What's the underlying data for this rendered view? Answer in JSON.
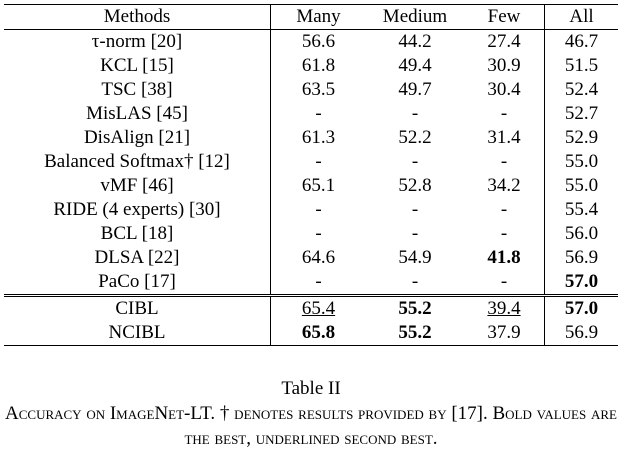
{
  "table": {
    "headers": [
      "Methods",
      "Many",
      "Medium",
      "Few",
      "All"
    ],
    "rows": [
      {
        "method": "τ-norm [20]",
        "cells": [
          "56.6",
          "44.2",
          "27.4",
          "46.7"
        ],
        "bold": [],
        "underline": []
      },
      {
        "method": "KCL [15]",
        "cells": [
          "61.8",
          "49.4",
          "30.9",
          "51.5"
        ],
        "bold": [],
        "underline": []
      },
      {
        "method": "TSC [38]",
        "cells": [
          "63.5",
          "49.7",
          "30.4",
          "52.4"
        ],
        "bold": [],
        "underline": []
      },
      {
        "method": "MisLAS [45]",
        "cells": [
          "-",
          "-",
          "-",
          "52.7"
        ],
        "bold": [],
        "underline": []
      },
      {
        "method": "DisAlign [21]",
        "cells": [
          "61.3",
          "52.2",
          "31.4",
          "52.9"
        ],
        "bold": [],
        "underline": []
      },
      {
        "method": "Balanced Softmax† [12]",
        "cells": [
          "-",
          "-",
          "-",
          "55.0"
        ],
        "bold": [],
        "underline": []
      },
      {
        "method": "vMF [46]",
        "cells": [
          "65.1",
          "52.8",
          "34.2",
          "55.0"
        ],
        "bold": [],
        "underline": []
      },
      {
        "method": "RIDE (4 experts) [30]",
        "cells": [
          "-",
          "-",
          "-",
          "55.4"
        ],
        "bold": [],
        "underline": []
      },
      {
        "method": "BCL [18]",
        "cells": [
          "-",
          "-",
          "-",
          "56.0"
        ],
        "bold": [],
        "underline": []
      },
      {
        "method": "DLSA [22]",
        "cells": [
          "64.6",
          "54.9",
          "41.8",
          "56.9"
        ],
        "bold": [
          2
        ],
        "underline": []
      },
      {
        "method": "PaCo [17]",
        "cells": [
          "-",
          "-",
          "-",
          "57.0"
        ],
        "bold": [
          3
        ],
        "underline": []
      },
      {
        "method": "CIBL",
        "cells": [
          "65.4",
          "55.2",
          "39.4",
          "57.0"
        ],
        "bold": [
          1,
          3
        ],
        "underline": [
          0,
          2
        ]
      },
      {
        "method": "NCIBL",
        "cells": [
          "65.8",
          "55.2",
          "37.9",
          "56.9"
        ],
        "bold": [
          0,
          1
        ],
        "underline": []
      }
    ]
  },
  "caption": {
    "label": "Table II",
    "text": "Accuracy on ImageNet-LT. † denotes results provided by [17]. Bold values are the best, underlined second best."
  }
}
